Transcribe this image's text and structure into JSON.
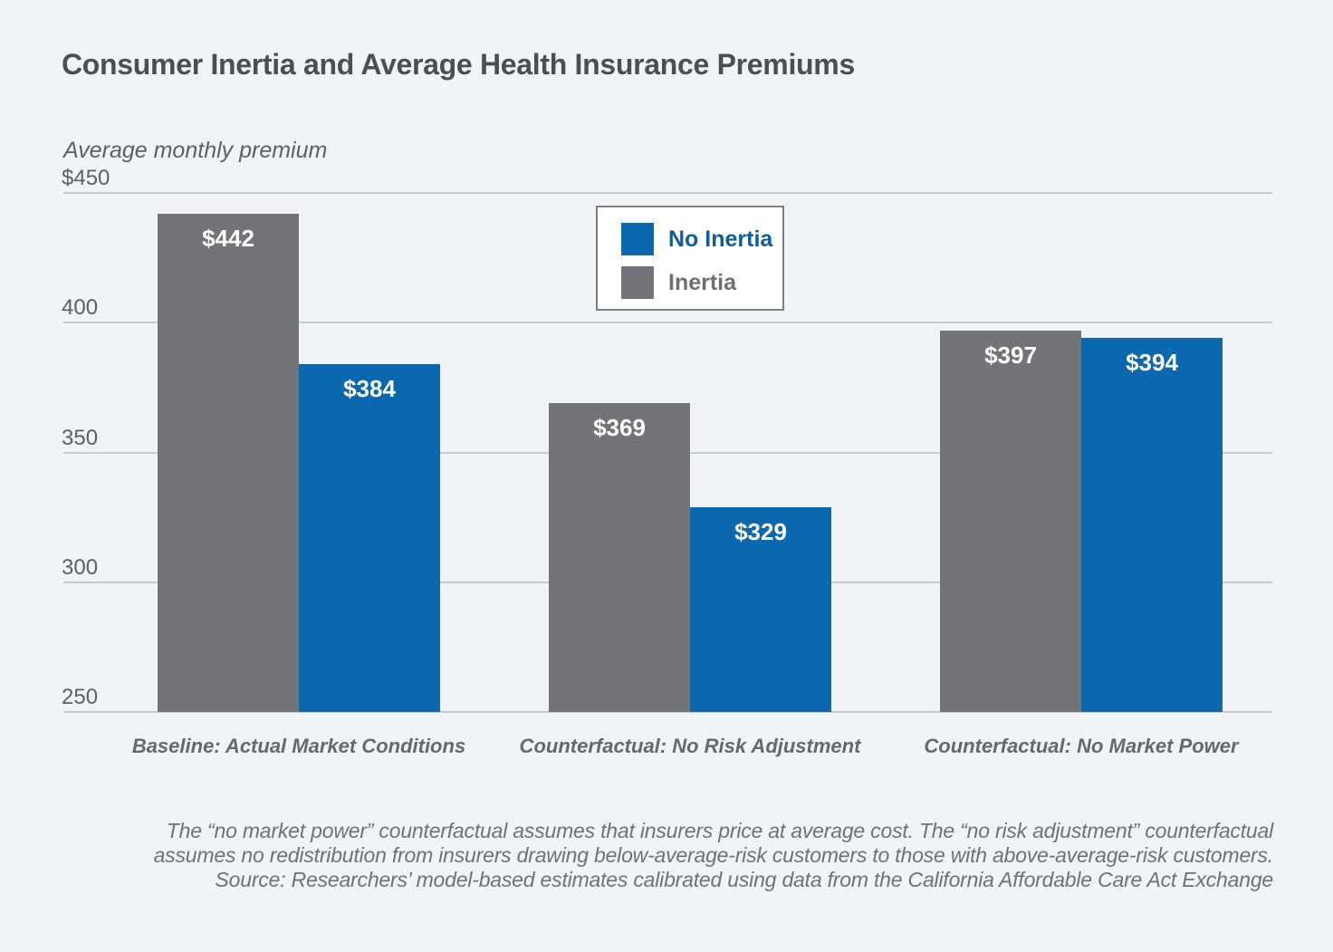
{
  "page": {
    "background_color": "#f0f4f8",
    "gridline_color": "#c7ccd1"
  },
  "title": "Consumer Inertia and Average Health Insurance Premiums",
  "chart_data": {
    "type": "bar",
    "title": "Consumer Inertia and Average Health Insurance Premiums",
    "xlabel": "",
    "ylabel": "Average monthly premium",
    "ylim": [
      250,
      450
    ],
    "yticks": [
      450,
      400,
      350,
      300,
      250
    ],
    "ytick_labels": [
      "$450",
      "400",
      "350",
      "300",
      "250"
    ],
    "grid": "horizontal",
    "legend_position": "top-center-inside",
    "categories": [
      "Baseline: Actual Market Conditions",
      "Counterfactual: No Risk Adjustment",
      "Counterfactual: No Market Power"
    ],
    "series": [
      {
        "name": "Inertia",
        "color": "#727477",
        "values": [
          442,
          369,
          397
        ],
        "data_labels": [
          "$442",
          "$369",
          "$397"
        ]
      },
      {
        "name": "No Inertia",
        "color": "#0c68ae",
        "values": [
          384,
          329,
          394
        ],
        "data_labels": [
          "$384",
          "$329",
          "$394"
        ]
      }
    ]
  },
  "legend": {
    "items": [
      {
        "label": "No Inertia",
        "swatch_color": "#0c68ae",
        "label_color": "#0e5d9e"
      },
      {
        "label": "Inertia",
        "swatch_color": "#727477",
        "label_color": "#6d6f72"
      }
    ]
  },
  "footnote": {
    "lines": [
      "The “no market power” counterfactual assumes that insurers price at average cost. The “no risk adjustment” counterfactual",
      "assumes no redistribution from insurers drawing below-average-risk customers to those with above-average-risk customers.",
      "Source: Researchers’ model-based estimates calibrated using data from the California Affordable Care Act Exchange"
    ]
  }
}
